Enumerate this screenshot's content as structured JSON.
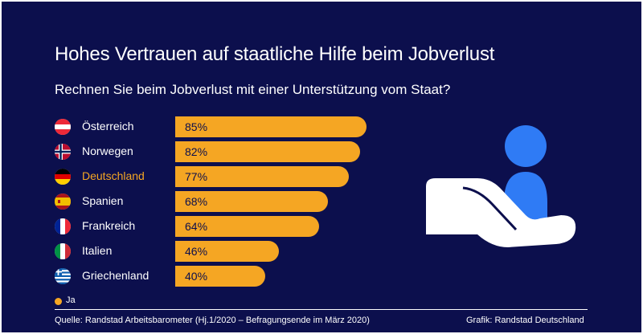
{
  "title": "Hohes Vertrauen auf staatliche Hilfe beim Jobverlust",
  "subtitle": "Rechnen Sie beim Jobverlust mit einer Unterstützung vom Staat?",
  "chart_data": {
    "type": "bar",
    "orientation": "horizontal",
    "categories": [
      "Österreich",
      "Norwegen",
      "Deutschland",
      "Spanien",
      "Frankreich",
      "Italien",
      "Griechenland"
    ],
    "series": [
      {
        "name": "Ja",
        "values": [
          85,
          82,
          77,
          68,
          64,
          46,
          40
        ],
        "labels": [
          "85%",
          "82%",
          "77%",
          "68%",
          "64%",
          "46%",
          "40%"
        ]
      }
    ],
    "highlight": "Deutschland",
    "xlim": [
      0,
      100
    ],
    "unit": "%",
    "legend": "bottom-left",
    "grid": false
  },
  "rows": [
    {
      "country": "Österreich",
      "value": 85,
      "label": "85%",
      "flag": "austria-flag-icon"
    },
    {
      "country": "Norwegen",
      "value": 82,
      "label": "82%",
      "flag": "norway-flag-icon"
    },
    {
      "country": "Deutschland",
      "value": 77,
      "label": "77%",
      "flag": "germany-flag-icon",
      "highlight": true
    },
    {
      "country": "Spanien",
      "value": 68,
      "label": "68%",
      "flag": "spain-flag-icon"
    },
    {
      "country": "Frankreich",
      "value": 64,
      "label": "64%",
      "flag": "france-flag-icon"
    },
    {
      "country": "Italien",
      "value": 46,
      "label": "46%",
      "flag": "italy-flag-icon"
    },
    {
      "country": "Griechenland",
      "value": 40,
      "label": "40%",
      "flag": "greece-flag-icon"
    }
  ],
  "legend": {
    "label": "Ja"
  },
  "footer": {
    "source": "Quelle: Randstad Arbeitsbarometer (Hj.1/2020 – Befragungsende im März 2020)",
    "credit": "Grafik: Randstad Deutschland"
  },
  "colors": {
    "background": "#0c0f4d",
    "bar": "#f5a623",
    "highlight_text": "#f5a623",
    "text": "#ffffff",
    "illustration_person": "#2f7bf5",
    "illustration_hand": "#ffffff"
  },
  "illustration": "hand-holding-person-icon"
}
